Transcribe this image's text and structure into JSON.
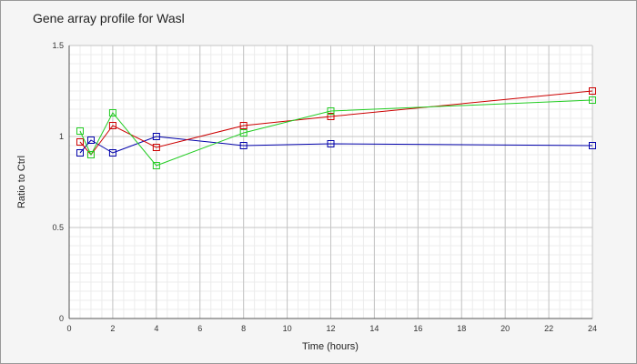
{
  "chart_data": {
    "type": "line",
    "title": "Gene array profile for Wasl",
    "xlabel": "Time (hours)",
    "ylabel": "Ratio to Ctrl",
    "xlim": [
      0,
      24
    ],
    "ylim": [
      0,
      1.5
    ],
    "x_ticks": [
      "0",
      "2",
      "4",
      "6",
      "8",
      "10",
      "12",
      "14",
      "16",
      "18",
      "20",
      "22",
      "24"
    ],
    "y_ticks": [
      "0",
      "0.5",
      "1",
      "1.5"
    ],
    "grid": true,
    "legend": "none",
    "marker": "square",
    "series": [
      {
        "color": "#0000aa",
        "x": [
          0.5,
          1,
          2,
          4,
          8,
          12,
          24
        ],
        "y": [
          0.91,
          0.98,
          0.91,
          1.0,
          0.95,
          0.96,
          0.95
        ]
      },
      {
        "color": "#cc0000",
        "x": [
          0.5,
          1,
          2,
          4,
          8,
          12,
          24
        ],
        "y": [
          0.97,
          0.9,
          1.06,
          0.94,
          1.06,
          1.11,
          1.25
        ]
      },
      {
        "color": "#22cc22",
        "x": [
          0.5,
          1,
          2,
          4,
          8,
          12,
          24
        ],
        "y": [
          1.03,
          0.9,
          1.13,
          0.84,
          1.02,
          1.14,
          1.2
        ]
      }
    ]
  }
}
